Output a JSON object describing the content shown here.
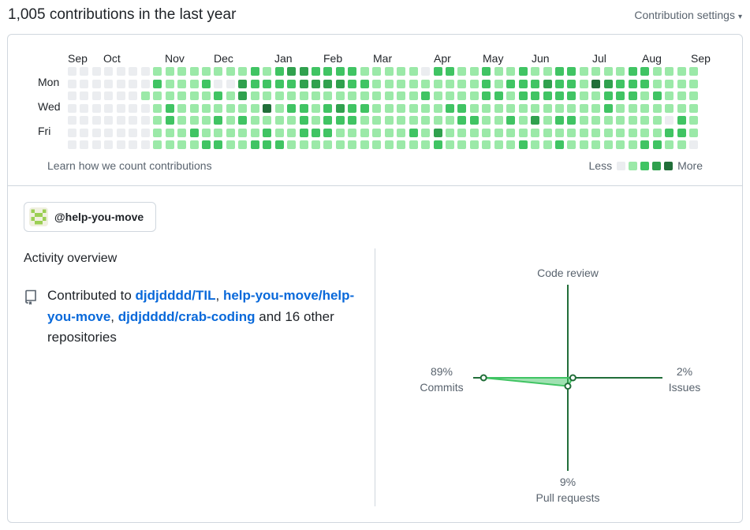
{
  "header": {
    "title": "1,005 contributions in the last year",
    "settings_label": "Contribution settings",
    "settings_caret": "▾"
  },
  "calendar": {
    "months": [
      "Sep",
      "Oct",
      "Nov",
      "Dec",
      "Jan",
      "Feb",
      "Mar",
      "Apr",
      "May",
      "Jun",
      "Jul",
      "Aug",
      "Sep"
    ],
    "day_labels": [
      "Mon",
      "Wed",
      "Fri"
    ],
    "grid_rows": [
      "0000000111111112123322221111102211211211221111221111",
      "0000000211120032222333322111111111212223221432221111",
      "0000001111112131111111111111121111221222221122212111",
      "0000000121111111412212322111111221111111111121111111",
      "0000000121112121111212221111111122112131221111111021",
      "0000000111211111211222111111213111111111111111111221",
      "0000000111122112221111111111112111111211211111122110"
    ],
    "level_colors": [
      "#ebedf0",
      "#9be9a8",
      "#40c463",
      "#30a14e",
      "#216e39"
    ],
    "learn_link": "Learn how we count contributions",
    "legend_less": "Less",
    "legend_more": "More"
  },
  "org": {
    "name": "@help-you-move",
    "avatar_icon": "pixel-avatar-icon"
  },
  "activity": {
    "title": "Activity overview",
    "contributed_prefix": "Contributed to",
    "repos": [
      "djdjdddd/TIL",
      "help-you-move/help-you-move",
      "djdjdddd/crab-coding"
    ],
    "sep": ",",
    "suffix": "and 16 other repositories"
  },
  "radar": {
    "code_review_label": "Code review",
    "commits_pct": "89%",
    "commits_label": "Commits",
    "issues_pct": "2%",
    "issues_label": "Issues",
    "pr_pct": "9%",
    "pr_label": "Pull requests",
    "values": {
      "commits": 89,
      "issues": 2,
      "pull_requests": 9,
      "code_review": 0
    },
    "axis_color": "#216e39",
    "fill_color": "#40c463"
  }
}
